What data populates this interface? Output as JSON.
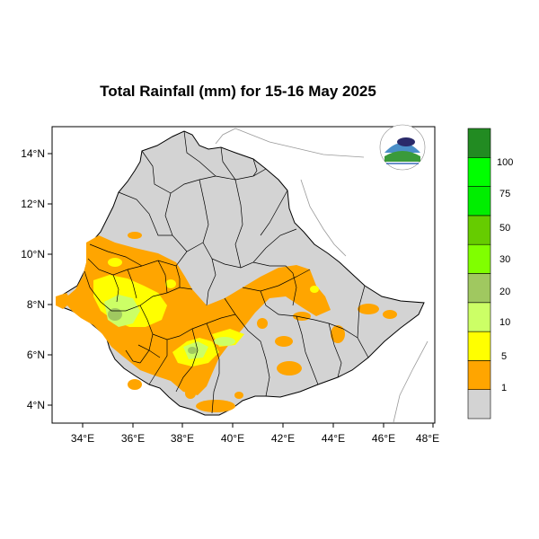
{
  "title": "Total Rainfall (mm) for 15-16 May 2025",
  "x_ticks": [
    "34°E",
    "36°E",
    "38°E",
    "40°E",
    "42°E",
    "44°E",
    "46°E",
    "48°E"
  ],
  "y_ticks": [
    "14°N",
    "12°N",
    "10°N",
    "8°N",
    "6°N",
    "4°N"
  ],
  "legend": {
    "labels": [
      "1",
      "5",
      "10",
      "20",
      "30",
      "50",
      "75",
      "100"
    ],
    "colors": [
      "#d3d3d3",
      "#ffa500",
      "#ffff00",
      "#ccff66",
      "#a0c860",
      "#80ff00",
      "#66cc00",
      "#00ee00",
      "#00ff00",
      "#228b22"
    ]
  },
  "colors": {
    "land": "#d3d3d3",
    "boundary": "#000000",
    "neighbor_border": "#999999"
  }
}
